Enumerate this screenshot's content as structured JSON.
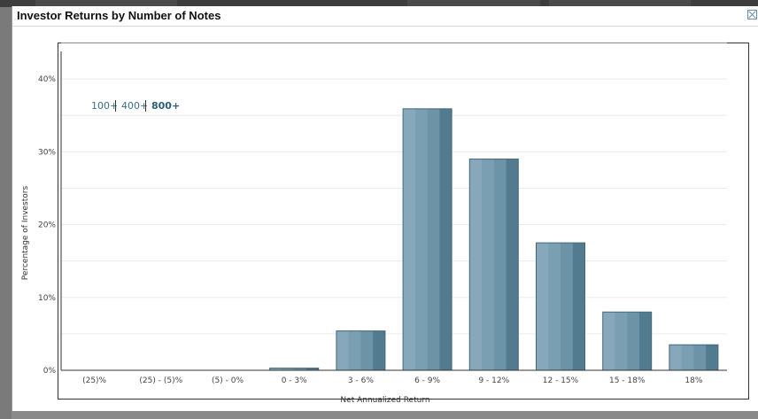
{
  "dialog": {
    "title": "Investor Returns by Number of Notes"
  },
  "toggles": [
    {
      "label": "100+",
      "active": false
    },
    {
      "label": "400+",
      "active": false
    },
    {
      "label": "800+",
      "active": true
    }
  ],
  "colors": {
    "bar_light": "#86a8ba",
    "bar_mid": "#6d93a7",
    "bar_dark": "#527b90",
    "gridline": "#ececec",
    "axis": "#333333"
  },
  "chart_data": {
    "type": "bar",
    "xlabel": "Net Annualized Return",
    "ylabel": "Percentage of Investors",
    "ylim": [
      0,
      45
    ],
    "yticks": [
      0,
      10,
      20,
      30,
      40
    ],
    "ytick_labels": [
      "0%",
      "10%",
      "20%",
      "30%",
      "40%"
    ],
    "categories": [
      "(25)%",
      "(25) - (5)%",
      "(5) - 0%",
      "0 - 3%",
      "3 - 6%",
      "6 - 9%",
      "9 - 12%",
      "12 - 15%",
      "15 - 18%",
      "18%"
    ],
    "values": [
      0,
      0,
      0,
      0.3,
      5.4,
      35.9,
      29.0,
      17.5,
      8.0,
      3.5
    ],
    "grid": true,
    "legend": "none"
  }
}
